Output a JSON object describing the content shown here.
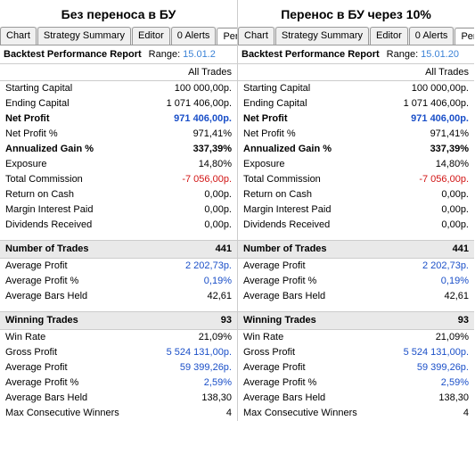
{
  "panels": [
    {
      "title": "Без переноса в БУ",
      "tabs": [
        "Chart",
        "Strategy Summary",
        "Editor",
        "0 Alerts",
        "Perform"
      ],
      "activeTab": 4,
      "reportLabel": "Backtest Performance Report",
      "rangeLabel": "Range:",
      "rangeValue": "15.01.2",
      "colHeader": "All Trades",
      "rows": [
        {
          "label": "Starting Capital",
          "value": "100 000,00p."
        },
        {
          "label": "Ending Capital",
          "value": "1 071 406,00p."
        },
        {
          "label": "Net Profit",
          "value": "971 406,00p.",
          "bold": true,
          "color": "blue"
        },
        {
          "label": "Net Profit %",
          "value": "971,41%"
        },
        {
          "label": "Annualized Gain %",
          "value": "337,39%",
          "bold": true
        },
        {
          "label": "Exposure",
          "value": "14,80%"
        },
        {
          "label": "Total Commission",
          "value": "-7 056,00p.",
          "color": "red"
        },
        {
          "label": "Return on Cash",
          "value": "0,00p."
        },
        {
          "label": "Margin Interest Paid",
          "value": "0,00p."
        },
        {
          "label": "Dividends Received",
          "value": "0,00p."
        },
        {
          "type": "gap"
        },
        {
          "label": "Number of Trades",
          "value": "441",
          "section": true
        },
        {
          "label": "Average Profit",
          "value": "2 202,73p.",
          "color": "blue"
        },
        {
          "label": "Average Profit %",
          "value": "0,19%",
          "color": "blue"
        },
        {
          "label": "Average Bars Held",
          "value": "42,61"
        },
        {
          "type": "gap"
        },
        {
          "label": "Winning Trades",
          "value": "93",
          "section": true
        },
        {
          "label": "Win Rate",
          "value": "21,09%"
        },
        {
          "label": "Gross Profit",
          "value": "5 524 131,00p.",
          "color": "blue"
        },
        {
          "label": "Average Profit",
          "value": "59 399,26p.",
          "color": "blue"
        },
        {
          "label": "Average Profit %",
          "value": "2,59%",
          "color": "blue"
        },
        {
          "label": "Average Bars Held",
          "value": "138,30"
        },
        {
          "label": "Max Consecutive Winners",
          "value": "4"
        }
      ]
    },
    {
      "title": "Перенос в БУ через 10%",
      "tabs": [
        "Chart",
        "Strategy Summary",
        "Editor",
        "0 Alerts",
        "Perform"
      ],
      "activeTab": 4,
      "reportLabel": "Backtest Performance Report",
      "rangeLabel": "Range:",
      "rangeValue": "15.01.20",
      "colHeader": "All Trades",
      "rows": [
        {
          "label": "Starting Capital",
          "value": "100 000,00p."
        },
        {
          "label": "Ending Capital",
          "value": "1 071 406,00p."
        },
        {
          "label": "Net Profit",
          "value": "971 406,00p.",
          "bold": true,
          "color": "blue"
        },
        {
          "label": "Net Profit %",
          "value": "971,41%"
        },
        {
          "label": "Annualized Gain %",
          "value": "337,39%",
          "bold": true
        },
        {
          "label": "Exposure",
          "value": "14,80%"
        },
        {
          "label": "Total Commission",
          "value": "-7 056,00p.",
          "color": "red"
        },
        {
          "label": "Return on Cash",
          "value": "0,00p."
        },
        {
          "label": "Margin Interest Paid",
          "value": "0,00p."
        },
        {
          "label": "Dividends Received",
          "value": "0,00p."
        },
        {
          "type": "gap"
        },
        {
          "label": "Number of Trades",
          "value": "441",
          "section": true
        },
        {
          "label": "Average Profit",
          "value": "2 202,73p.",
          "color": "blue"
        },
        {
          "label": "Average Profit %",
          "value": "0,19%",
          "color": "blue"
        },
        {
          "label": "Average Bars Held",
          "value": "42,61"
        },
        {
          "type": "gap"
        },
        {
          "label": "Winning Trades",
          "value": "93",
          "section": true
        },
        {
          "label": "Win Rate",
          "value": "21,09%"
        },
        {
          "label": "Gross Profit",
          "value": "5 524 131,00p.",
          "color": "blue"
        },
        {
          "label": "Average Profit",
          "value": "59 399,26p.",
          "color": "blue"
        },
        {
          "label": "Average Profit %",
          "value": "2,59%",
          "color": "blue"
        },
        {
          "label": "Average Bars Held",
          "value": "138,30"
        },
        {
          "label": "Max Consecutive Winners",
          "value": "4"
        }
      ]
    }
  ]
}
